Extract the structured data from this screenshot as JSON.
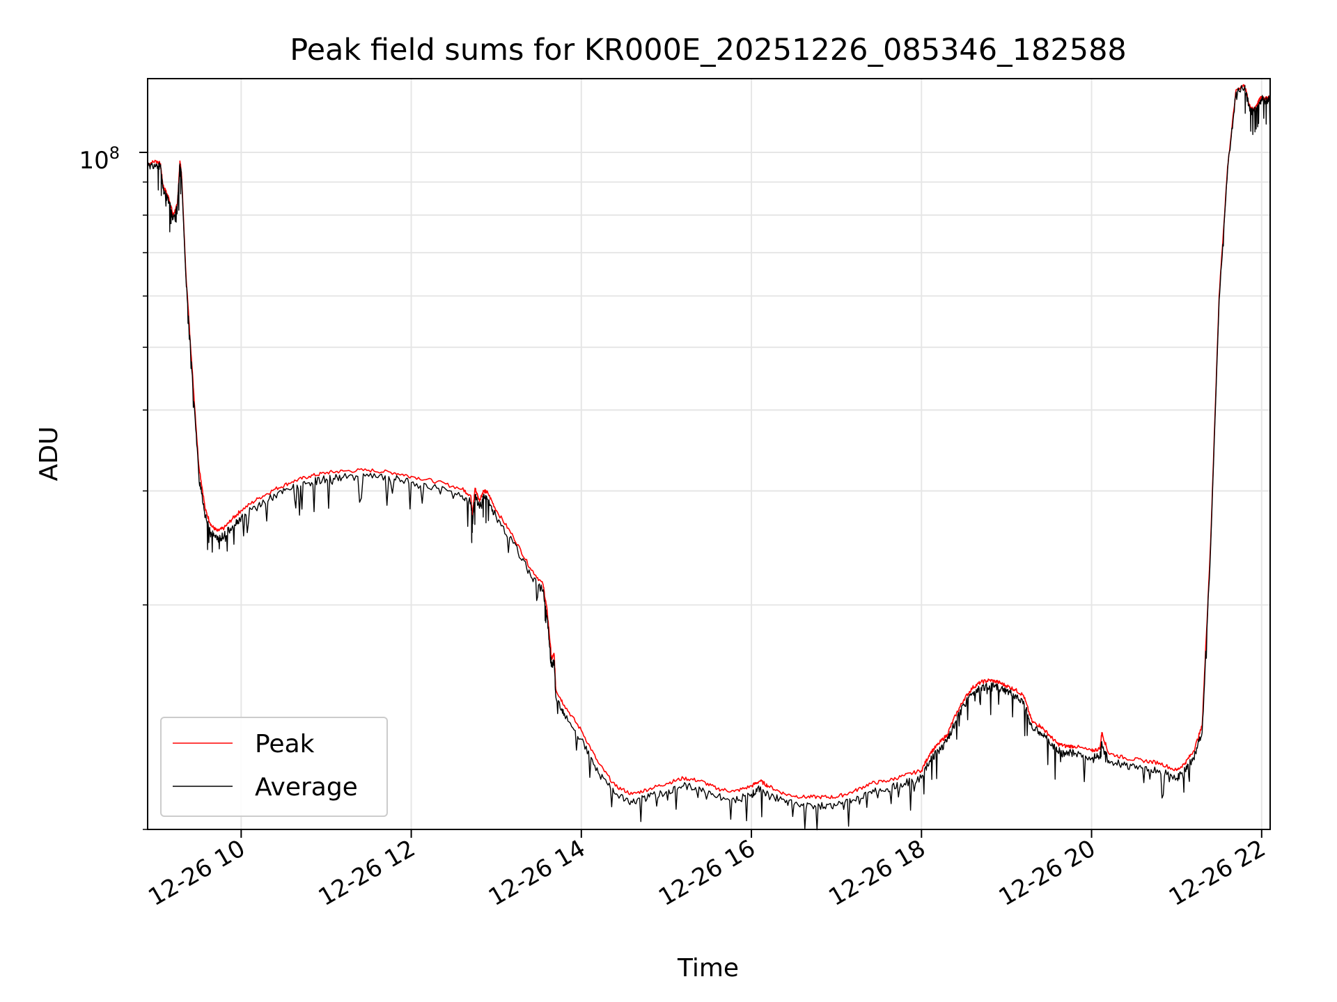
{
  "chart_data": {
    "type": "line",
    "title": "Peak field sums for KR000E_20251226_085346_182588",
    "xlabel": "Time",
    "ylabel": "ADU",
    "yscale": "log",
    "grid": true,
    "legend_position": "lower-left",
    "x_unit": "hours since 2025-12-26 00:00",
    "xlim": [
      8.9,
      22.1
    ],
    "ylim": [
      9000000,
      130000000
    ],
    "x_ticks": [
      10,
      12,
      14,
      16,
      18,
      20,
      22
    ],
    "x_tick_labels": [
      "12-26 10",
      "12-26 12",
      "12-26 14",
      "12-26 16",
      "12-26 18",
      "12-26 20",
      "12-26 22"
    ],
    "y_major_tick_label": {
      "base": "10",
      "exponent": "8"
    },
    "y_major_tick": 100000000,
    "y_minor_ticks": [
      9000000,
      20000000,
      30000000,
      40000000,
      50000000,
      60000000,
      70000000,
      80000000,
      90000000
    ],
    "series": [
      {
        "name": "Peak",
        "color": "#ff0000",
        "x": [
          8.9,
          9.0,
          9.05,
          9.08,
          9.15,
          9.2,
          9.25,
          9.28,
          9.3,
          9.35,
          9.42,
          9.5,
          9.58,
          9.65,
          9.72,
          9.8,
          9.9,
          10.0,
          10.2,
          10.4,
          10.6,
          10.8,
          11.0,
          11.2,
          11.5,
          11.8,
          12.0,
          12.3,
          12.6,
          12.7,
          12.72,
          12.75,
          12.8,
          12.85,
          12.9,
          13.0,
          13.2,
          13.4,
          13.55,
          13.6,
          13.65,
          13.68,
          13.7,
          13.8,
          14.0,
          14.2,
          14.4,
          14.6,
          14.8,
          15.0,
          15.2,
          15.4,
          15.6,
          15.8,
          16.0,
          16.1,
          16.2,
          16.4,
          16.6,
          16.8,
          17.0,
          17.2,
          17.4,
          17.6,
          17.8,
          18.0,
          18.1,
          18.2,
          18.3,
          18.4,
          18.5,
          18.6,
          18.7,
          18.8,
          18.9,
          19.0,
          19.1,
          19.2,
          19.3,
          19.4,
          19.5,
          19.6,
          19.7,
          19.8,
          20.0,
          20.1,
          20.12,
          20.2,
          20.4,
          20.6,
          20.8,
          21.0,
          21.1,
          21.2,
          21.3,
          21.4,
          21.5,
          21.6,
          21.7,
          21.8,
          21.85,
          21.9,
          21.95,
          22.0,
          22.05,
          22.1
        ],
        "values": [
          96000000,
          97000000,
          96000000,
          89000000,
          85000000,
          80000000,
          83000000,
          97000000,
          92000000,
          65000000,
          47000000,
          33000000,
          28000000,
          26500000,
          26000000,
          26300000,
          27200000,
          28000000,
          29200000,
          30200000,
          31000000,
          31600000,
          32000000,
          32200000,
          32300000,
          32000000,
          31600000,
          31000000,
          30200000,
          29500000,
          27500000,
          30300000,
          29000000,
          30000000,
          29800000,
          28000000,
          25500000,
          22800000,
          21500000,
          19500000,
          16500000,
          16800000,
          14800000,
          14000000,
          12800000,
          11400000,
          10500000,
          10200000,
          10400000,
          10600000,
          10800000,
          10700000,
          10400000,
          10300000,
          10500000,
          10700000,
          10500000,
          10200000,
          10100000,
          10100000,
          10100000,
          10300000,
          10600000,
          10700000,
          10900000,
          11100000,
          11800000,
          12200000,
          12600000,
          13500000,
          14300000,
          14900000,
          15200000,
          15300000,
          15200000,
          15000000,
          14800000,
          14500000,
          13200000,
          13000000,
          12600000,
          12200000,
          12100000,
          12100000,
          11900000,
          12000000,
          12700000,
          11800000,
          11600000,
          11500000,
          11400000,
          11100000,
          11400000,
          11900000,
          13000000,
          25000000,
          60000000,
          95000000,
          125000000,
          127000000,
          119000000,
          116000000,
          119000000,
          122000000,
          121000000,
          122000000
        ]
      },
      {
        "name": "Average",
        "color": "#000000",
        "x": [
          8.9,
          9.0,
          9.05,
          9.08,
          9.15,
          9.2,
          9.25,
          9.28,
          9.3,
          9.35,
          9.42,
          9.5,
          9.58,
          9.65,
          9.72,
          9.8,
          9.9,
          10.0,
          10.2,
          10.4,
          10.6,
          10.8,
          11.0,
          11.2,
          11.5,
          11.8,
          12.0,
          12.3,
          12.6,
          12.7,
          12.72,
          12.75,
          12.8,
          12.85,
          12.9,
          13.0,
          13.2,
          13.4,
          13.55,
          13.6,
          13.65,
          13.68,
          13.7,
          13.8,
          14.0,
          14.2,
          14.4,
          14.6,
          14.8,
          15.0,
          15.2,
          15.4,
          15.6,
          15.8,
          16.0,
          16.1,
          16.2,
          16.4,
          16.6,
          16.8,
          17.0,
          17.2,
          17.4,
          17.6,
          17.8,
          18.0,
          18.1,
          18.2,
          18.3,
          18.4,
          18.5,
          18.6,
          18.7,
          18.8,
          18.9,
          19.0,
          19.1,
          19.2,
          19.3,
          19.4,
          19.5,
          19.6,
          19.7,
          19.8,
          20.0,
          20.1,
          20.12,
          20.2,
          20.4,
          20.6,
          20.8,
          21.0,
          21.1,
          21.2,
          21.3,
          21.4,
          21.5,
          21.6,
          21.7,
          21.8,
          21.85,
          21.9,
          21.95,
          22.0,
          22.05,
          22.1
        ],
        "values": [
          95000000,
          96000000,
          95000000,
          88000000,
          84000000,
          79000000,
          82000000,
          96000000,
          91000000,
          64000000,
          46000000,
          32000000,
          27300000,
          25800000,
          25300000,
          25600000,
          26500000,
          27300000,
          28500000,
          29500000,
          30300000,
          30900000,
          31300000,
          31500000,
          31600000,
          31300000,
          30900000,
          30300000,
          29500000,
          28800000,
          26800000,
          29600000,
          28300000,
          29300000,
          29100000,
          27300000,
          24900000,
          22300000,
          21000000,
          19000000,
          16100000,
          16400000,
          14400000,
          13600000,
          12400000,
          11000000,
          10200000,
          9900000,
          10100000,
          10300000,
          10500000,
          10400000,
          10100000,
          10000000,
          10200000,
          10400000,
          10200000,
          9900000,
          9800000,
          9800000,
          9800000,
          10000000,
          10300000,
          10400000,
          10600000,
          10800000,
          11500000,
          11900000,
          12300000,
          13200000,
          14000000,
          14600000,
          14900000,
          15000000,
          14900000,
          14700000,
          14500000,
          14200000,
          12900000,
          12700000,
          12300000,
          11900000,
          11800000,
          11800000,
          11600000,
          11700000,
          12300000,
          11500000,
          11300000,
          11200000,
          11100000,
          10800000,
          11100000,
          11600000,
          12700000,
          24500000,
          59000000,
          94000000,
          124000000,
          126000000,
          118000000,
          115000000,
          118000000,
          121000000,
          120000000,
          121000000
        ]
      }
    ]
  }
}
